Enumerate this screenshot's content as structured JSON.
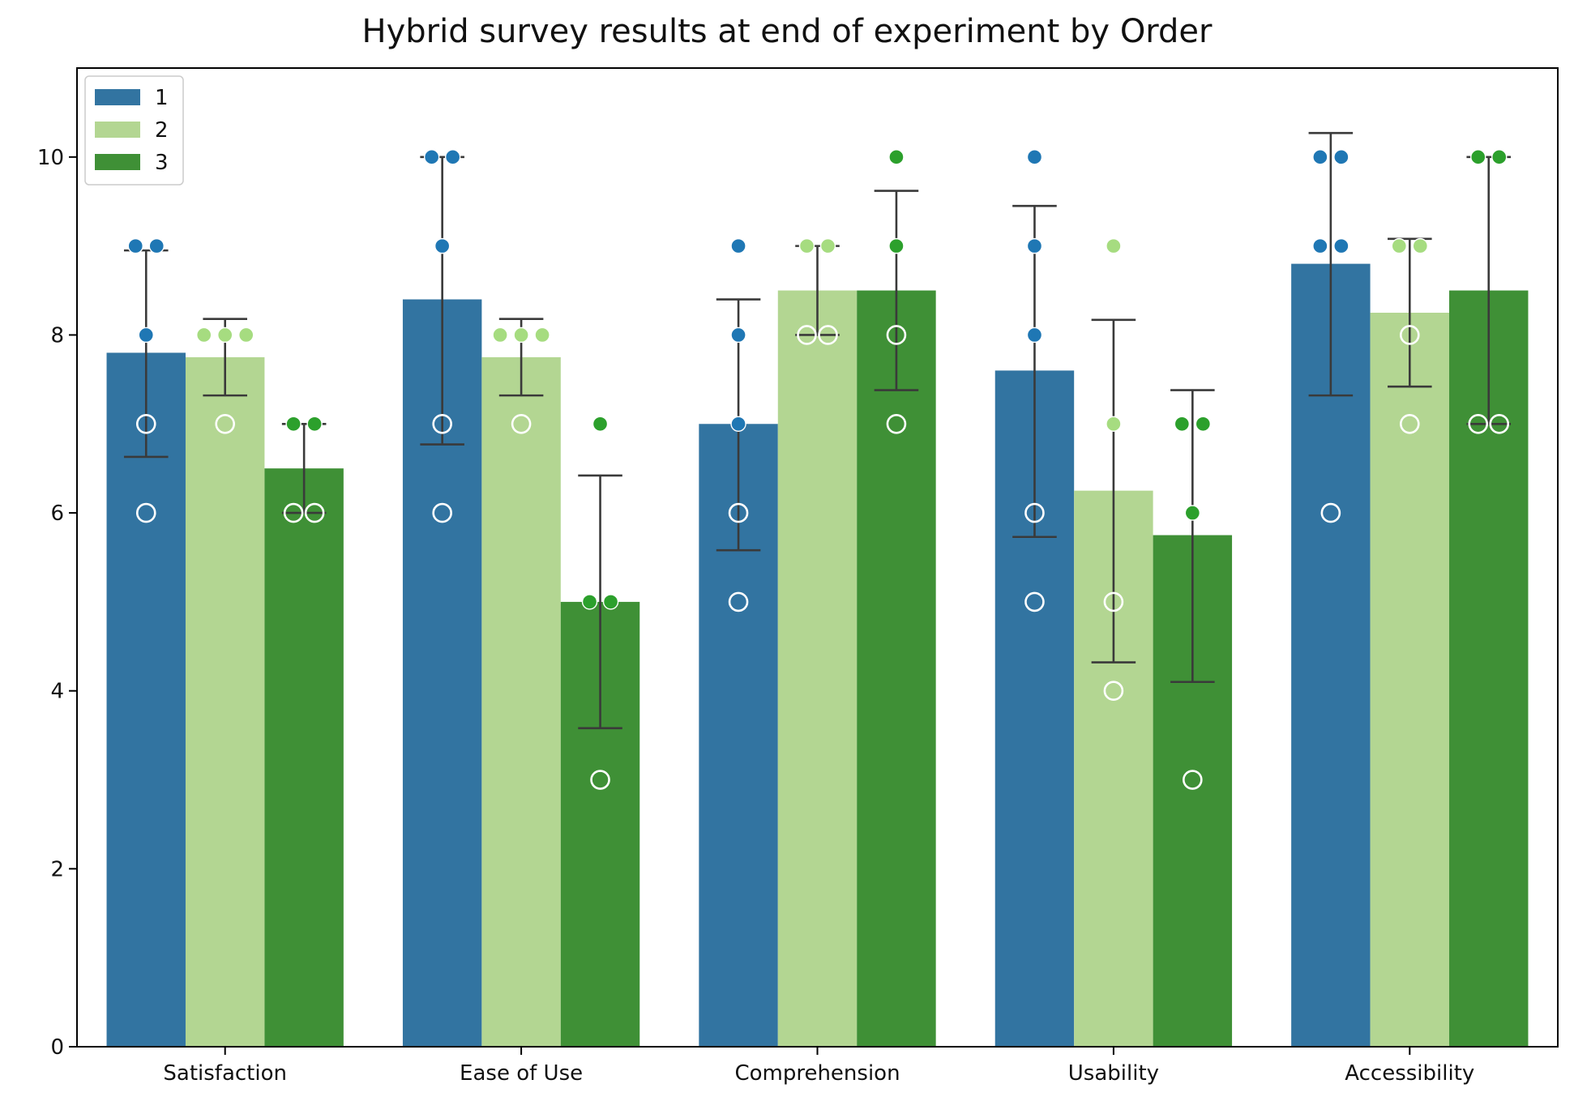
{
  "chart_data": {
    "type": "bar",
    "title": "Hybrid survey results at end of experiment by Order",
    "xlabel": "",
    "ylabel": "",
    "categories": [
      "Satisfaction",
      "Ease of Use",
      "Comprehension",
      "Usability",
      "Accessibility"
    ],
    "ylim": [
      0,
      11
    ],
    "yticks": [
      0,
      2,
      4,
      6,
      8,
      10
    ],
    "legend": {
      "position": "top-left",
      "entries": [
        "1",
        "2",
        "3"
      ]
    },
    "series": [
      {
        "name": "1",
        "color": "#3274a1",
        "point_color": "#1f77b4",
        "values": [
          7.8,
          8.4,
          7.0,
          7.6,
          8.8
        ],
        "error_low": [
          6.63,
          6.77,
          5.58,
          5.73,
          7.32
        ],
        "error_high": [
          8.95,
          10.0,
          8.4,
          9.45,
          10.27
        ],
        "points": [
          [
            9,
            9,
            8,
            7,
            6
          ],
          [
            10,
            10,
            9,
            7,
            6
          ],
          [
            9,
            8,
            7,
            6,
            5
          ],
          [
            10,
            9,
            8,
            6,
            5
          ],
          [
            10,
            10,
            9,
            9,
            6
          ]
        ]
      },
      {
        "name": "2",
        "color": "#b3d692",
        "point_color": "#a6dc80",
        "values": [
          7.75,
          7.75,
          8.5,
          6.25,
          8.25
        ],
        "error_low": [
          7.32,
          7.32,
          8.0,
          4.32,
          7.42
        ],
        "error_high": [
          8.18,
          8.18,
          9.0,
          8.17,
          9.08
        ],
        "points": [
          [
            8,
            8,
            8,
            7
          ],
          [
            8,
            8,
            8,
            7
          ],
          [
            9,
            9,
            8,
            8
          ],
          [
            9,
            7,
            5,
            4
          ],
          [
            9,
            9,
            8,
            7
          ]
        ]
      },
      {
        "name": "3",
        "color": "#3f9036",
        "point_color": "#2ca02c",
        "values": [
          6.5,
          5.0,
          8.5,
          5.75,
          8.5
        ],
        "error_low": [
          6.0,
          3.58,
          7.38,
          4.1,
          7.0
        ],
        "error_high": [
          7.0,
          6.42,
          9.62,
          7.38,
          10.0
        ],
        "points": [
          [
            7,
            7,
            6,
            6
          ],
          [
            7,
            5,
            5,
            3
          ],
          [
            10,
            9,
            8,
            7
          ],
          [
            7,
            7,
            6,
            3
          ],
          [
            10,
            10,
            7,
            7
          ]
        ]
      }
    ]
  }
}
